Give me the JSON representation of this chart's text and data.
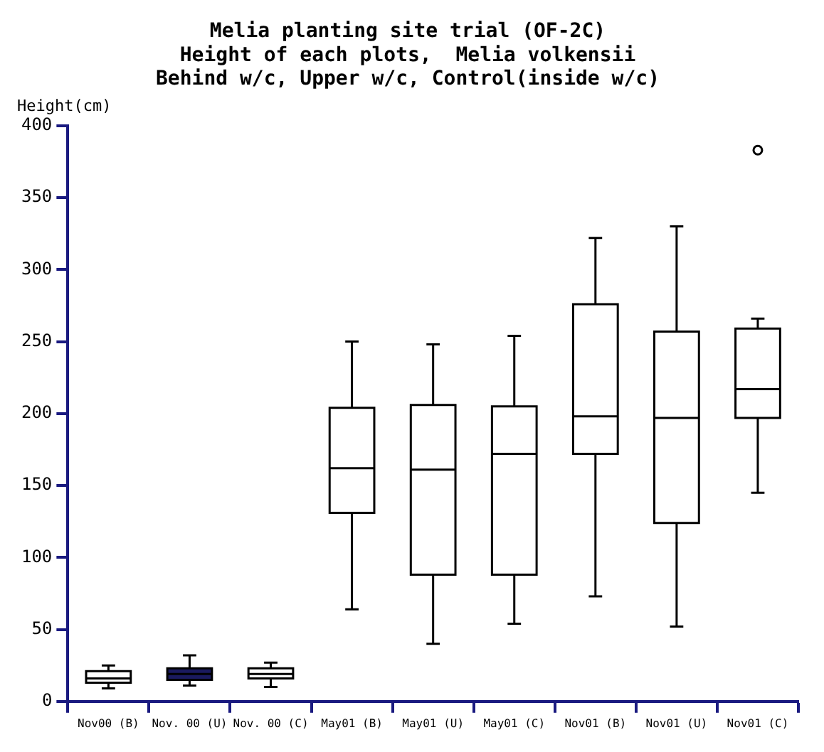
{
  "chart_data": {
    "type": "box",
    "title": "Melia planting site trial (OF-2C)",
    "subtitle": "Height of each plots,  Melia volkensii\nBehind w/c, Upper w/c, Control(inside w/c)",
    "ylabel": "Height(cm)",
    "categories": [
      "Nov00 (B)",
      "Nov. 00 (U)",
      "Nov. 00 (C)",
      "May01 (B)",
      "May01 (U)",
      "May01 (C)",
      "Nov01 (B)",
      "Nov01 (U)",
      "Nov01 (C)"
    ],
    "colors": [
      "#ffffff",
      "#1a1a5e",
      "#ffffff",
      "#ffffff",
      "#ffffff",
      "#ffffff",
      "#ffffff",
      "#ffffff",
      "#ffffff"
    ],
    "boxes": [
      {
        "low": 9,
        "q1": 13,
        "median": 16,
        "q3": 21,
        "high": 25
      },
      {
        "low": 11,
        "q1": 15,
        "median": 19,
        "q3": 23,
        "high": 32
      },
      {
        "low": 10,
        "q1": 16,
        "median": 19,
        "q3": 23,
        "high": 27
      },
      {
        "low": 64,
        "q1": 131,
        "median": 162,
        "q3": 204,
        "high": 250
      },
      {
        "low": 40,
        "q1": 88,
        "median": 161,
        "q3": 206,
        "high": 248
      },
      {
        "low": 54,
        "q1": 88,
        "median": 172,
        "q3": 205,
        "high": 254
      },
      {
        "low": 73,
        "q1": 172,
        "median": 198,
        "q3": 276,
        "high": 322
      },
      {
        "low": 52,
        "q1": 124,
        "median": 197,
        "q3": 257,
        "high": 330
      },
      {
        "low": 145,
        "q1": 197,
        "median": 217,
        "q3": 259,
        "high": 266,
        "outliers": [
          383
        ]
      }
    ],
    "ylim": [
      0,
      400
    ],
    "yticks": [
      0,
      50,
      100,
      150,
      200,
      250,
      300,
      350,
      400
    ],
    "grid": false,
    "legend": false
  }
}
